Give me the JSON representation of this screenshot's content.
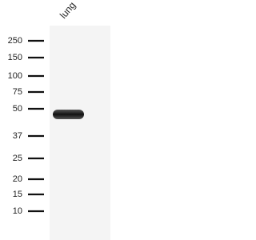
{
  "lane_label": "lung",
  "markers": [
    250,
    150,
    100,
    75,
    50,
    37,
    25,
    20,
    15,
    10
  ]
}
